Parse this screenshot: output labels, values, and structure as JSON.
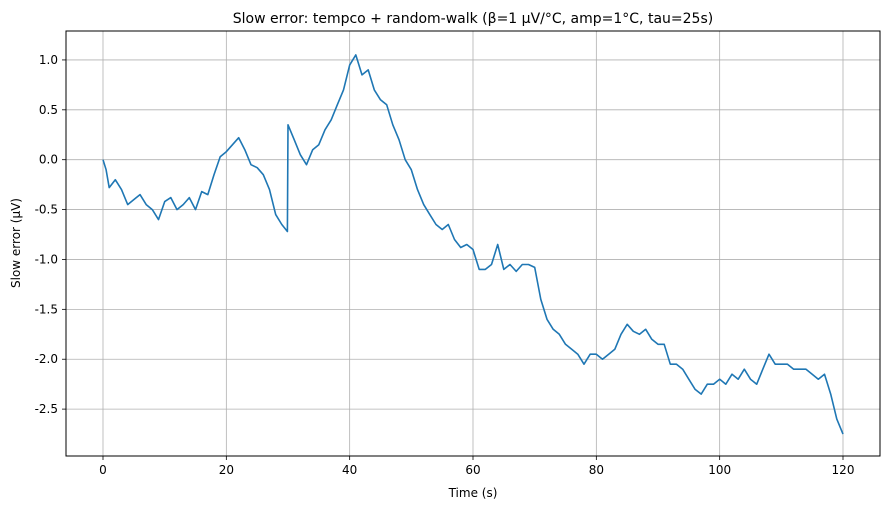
{
  "chart_data": {
    "type": "line",
    "title": "Slow error: tempco + random-walk (β=1 µV/°C, amp=1°C, tau=25s)",
    "xlabel": "Time (s)",
    "ylabel": "Slow error (µV)",
    "xlim": [
      -6,
      126
    ],
    "ylim": [
      -2.97,
      1.29
    ],
    "xticks": [
      0,
      20,
      40,
      60,
      80,
      100,
      120
    ],
    "xtick_labels": [
      "0",
      "20",
      "40",
      "60",
      "80",
      "100",
      "120"
    ],
    "yticks": [
      1.0,
      0.5,
      0.0,
      -0.5,
      -1.0,
      -1.5,
      -2.0,
      -2.5
    ],
    "ytick_labels": [
      "1.0",
      "0.5",
      "0.0",
      "-0.5",
      "-1.0",
      "-1.5",
      "-2.0",
      "-2.5"
    ],
    "grid": true,
    "legend": null,
    "series": [
      {
        "name": "slow error",
        "color": "#1f77b4",
        "x": [
          0,
          0.5,
          1,
          2,
          3,
          4,
          5,
          6,
          7,
          8,
          9,
          10,
          11,
          12,
          13,
          14,
          15,
          16,
          17,
          18,
          19,
          20,
          21,
          22,
          23,
          24,
          25,
          26,
          27,
          28,
          29,
          29.9,
          30,
          31,
          32,
          33,
          34,
          35,
          36,
          37,
          38,
          39,
          40,
          41,
          42,
          43,
          44,
          45,
          46,
          47,
          48,
          49,
          50,
          51,
          52,
          53,
          54,
          55,
          56,
          57,
          58,
          59,
          60,
          61,
          62,
          63,
          64,
          65,
          66,
          67,
          68,
          69,
          70,
          71,
          72,
          73,
          74,
          75,
          76,
          77,
          78,
          79,
          80,
          81,
          82,
          83,
          84,
          85,
          86,
          87,
          88,
          89,
          90,
          91,
          92,
          93,
          94,
          95,
          96,
          97,
          98,
          99,
          100,
          101,
          102,
          103,
          104,
          105,
          106,
          107,
          108,
          109,
          110,
          111,
          112,
          113,
          114,
          115,
          116,
          117,
          118,
          119,
          120
        ],
        "values": [
          0.0,
          -0.1,
          -0.28,
          -0.2,
          -0.3,
          -0.45,
          -0.4,
          -0.35,
          -0.45,
          -0.5,
          -0.6,
          -0.42,
          -0.38,
          -0.5,
          -0.45,
          -0.38,
          -0.5,
          -0.32,
          -0.35,
          -0.15,
          0.03,
          0.08,
          0.15,
          0.22,
          0.1,
          -0.05,
          -0.08,
          -0.15,
          -0.3,
          -0.55,
          -0.65,
          -0.72,
          0.35,
          0.2,
          0.05,
          -0.05,
          0.1,
          0.15,
          0.3,
          0.4,
          0.55,
          0.7,
          0.95,
          1.05,
          0.85,
          0.9,
          0.7,
          0.6,
          0.55,
          0.35,
          0.2,
          0.0,
          -0.1,
          -0.3,
          -0.45,
          -0.55,
          -0.65,
          -0.7,
          -0.65,
          -0.8,
          -0.88,
          -0.85,
          -0.9,
          -1.1,
          -1.1,
          -1.05,
          -0.85,
          -1.1,
          -1.05,
          -1.12,
          -1.05,
          -1.05,
          -1.08,
          -1.4,
          -1.6,
          -1.7,
          -1.75,
          -1.85,
          -1.9,
          -1.95,
          -2.05,
          -1.95,
          -1.95,
          -2.0,
          -1.95,
          -1.9,
          -1.75,
          -1.65,
          -1.72,
          -1.75,
          -1.7,
          -1.8,
          -1.85,
          -1.85,
          -2.05,
          -2.05,
          -2.1,
          -2.2,
          -2.3,
          -2.35,
          -2.25,
          -2.25,
          -2.2,
          -2.25,
          -2.15,
          -2.2,
          -2.1,
          -2.2,
          -2.25,
          -2.1,
          -1.95,
          -2.05,
          -2.05,
          -2.05,
          -2.1,
          -2.1,
          -2.1,
          -2.15,
          -2.2,
          -2.15,
          -2.35,
          -2.6,
          -2.75
        ]
      }
    ]
  },
  "colors": {
    "line": "#1f77b4",
    "grid": "#b0b0b0",
    "axis": "#000000",
    "background": "#ffffff"
  }
}
